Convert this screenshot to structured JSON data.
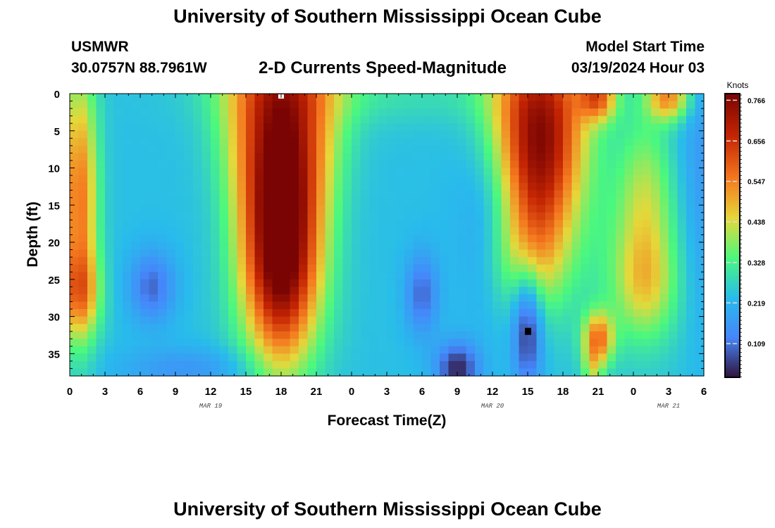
{
  "header": {
    "title": "University of Southern Mississippi Ocean Cube",
    "station": "USMWR",
    "coords": "30.0757N  88.7961W",
    "subtitle": "2-D Currents Speed-Magnitude",
    "start_label": "Model Start Time",
    "start_value": "03/19/2024 Hour 03"
  },
  "footer": {
    "title": "University of Southern Mississippi Ocean Cube"
  },
  "chart_data": {
    "type": "heatmap",
    "title": "2-D Currents Speed-Magnitude",
    "xlabel": "Forecast Time(Z)",
    "ylabel": "Depth (ft)",
    "x_range_hours": [
      0,
      54
    ],
    "x_ticks": [
      "0",
      "3",
      "6",
      "9",
      "12",
      "15",
      "18",
      "21",
      "0",
      "3",
      "6",
      "9",
      "12",
      "15",
      "18",
      "21",
      "0",
      "3",
      "6"
    ],
    "date_labels": [
      {
        "text": "MAR 19",
        "hour": 12
      },
      {
        "text": "MAR 20",
        "hour": 36
      },
      {
        "text": "MAR 21",
        "hour": 51
      }
    ],
    "y_range_ft": [
      0,
      38
    ],
    "y_ticks": [
      "0",
      "5",
      "10",
      "15",
      "20",
      "25",
      "30",
      "35"
    ],
    "y_inverted": true,
    "colorbar": {
      "title": "Knots",
      "min": 0.02,
      "max": 0.78,
      "ticks": [
        "0.766",
        "0.656",
        "0.547",
        "0.438",
        "0.328",
        "0.219",
        "0.109"
      ],
      "tick_values": [
        0.766,
        0.656,
        0.547,
        0.438,
        0.328,
        0.219,
        0.109
      ]
    },
    "colors": {
      "dark_red": "#7a0403",
      "red": "#c42503",
      "orange": "#f5791f",
      "yellow": "#e5d83a",
      "green": "#4bf87e",
      "cyan": "#28bbec",
      "blue": "#4686fb",
      "dark_blue": "#30123b"
    },
    "feature_speeds_knots": [
      {
        "label": "max core",
        "hour": 18,
        "depth_ft": 5,
        "speed": 0.77
      },
      {
        "label": "max core",
        "hour": 40,
        "depth_ft": 5,
        "speed": 0.73
      },
      {
        "label": "minimum",
        "hour": 33,
        "depth_ft": 37,
        "speed": 0.05
      },
      {
        "label": "minimum",
        "hour": 39,
        "depth_ft": 31,
        "speed": 0.04
      }
    ]
  }
}
